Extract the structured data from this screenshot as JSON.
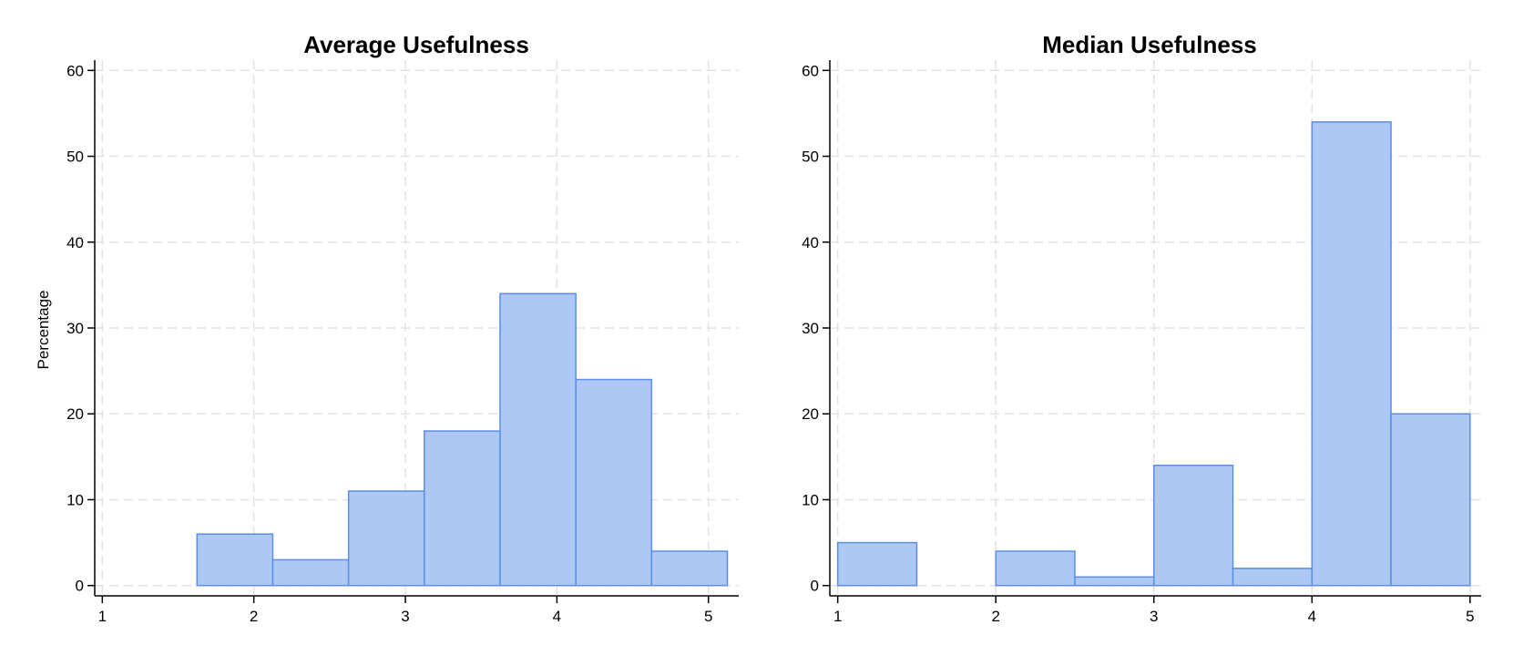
{
  "chart_data": [
    {
      "type": "bar",
      "title": "Average Usefulness",
      "xlabel": "",
      "ylabel": "Percentage",
      "xlim": [
        0.95,
        5.2
      ],
      "ylim": [
        -1.2,
        61.2
      ],
      "xticks": [
        "1",
        "2",
        "3",
        "4",
        "5"
      ],
      "yticks": [
        "0",
        "10",
        "20",
        "30",
        "40",
        "50",
        "60"
      ],
      "bin_width": 0.5,
      "bins": [
        {
          "x_start": 1.625,
          "value": 6
        },
        {
          "x_start": 2.125,
          "value": 3
        },
        {
          "x_start": 2.625,
          "value": 11
        },
        {
          "x_start": 3.125,
          "value": 18
        },
        {
          "x_start": 3.625,
          "value": 34
        },
        {
          "x_start": 4.125,
          "value": 24
        },
        {
          "x_start": 4.625,
          "value": 4
        }
      ],
      "grid": true,
      "legend": "none"
    },
    {
      "type": "bar",
      "title": "Median Usefulness",
      "xlabel": "",
      "ylabel": "",
      "xlim": [
        0.95,
        5.07
      ],
      "ylim": [
        -1.2,
        61.2
      ],
      "xticks": [
        "1",
        "2",
        "3",
        "4",
        "5"
      ],
      "yticks": [
        "0",
        "10",
        "20",
        "30",
        "40",
        "50",
        "60"
      ],
      "bin_width": 0.5,
      "bins": [
        {
          "x_start": 1.0,
          "value": 5
        },
        {
          "x_start": 1.5,
          "value": 0
        },
        {
          "x_start": 2.0,
          "value": 4
        },
        {
          "x_start": 2.5,
          "value": 1
        },
        {
          "x_start": 3.0,
          "value": 14
        },
        {
          "x_start": 3.5,
          "value": 2
        },
        {
          "x_start": 4.0,
          "value": 54
        },
        {
          "x_start": 4.5,
          "value": 20
        }
      ],
      "grid": true,
      "legend": "none"
    }
  ],
  "colors": {
    "bar_fill": "#aec8f5",
    "bar_edge": "#5b8ee6",
    "grid": "#e3e3e3",
    "axis": "#000000"
  }
}
